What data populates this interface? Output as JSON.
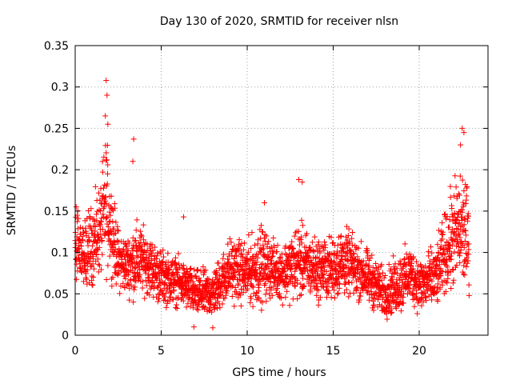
{
  "chart_data": {
    "type": "scatter",
    "title": "Day 130 of 2020, SRMTID for receiver nlsn",
    "xlabel": "GPS time / hours",
    "ylabel": "SRMTID / TECUs",
    "xlim": [
      0,
      24
    ],
    "ylim": [
      0,
      0.35
    ],
    "xticks": [
      "0",
      "5",
      "10",
      "15",
      "20"
    ],
    "xtick_values": [
      0,
      5,
      10,
      15,
      20
    ],
    "yticks": [
      "0",
      "0.05",
      "0.1",
      "0.15",
      "0.2",
      "0.25",
      "0.3",
      "0.35"
    ],
    "ytick_values": [
      0,
      0.05,
      0.1,
      0.15,
      0.2,
      0.25,
      0.3,
      0.35
    ],
    "grid": true,
    "legend": "none",
    "marker": "plus",
    "series": [
      {
        "color": "#ff0000",
        "x_range": [
          0,
          22.9
        ],
        "sample_interval_hours": 0.0083,
        "envelope": {
          "hours": [
            0,
            0.5,
            1,
            1.5,
            1.8,
            2,
            2.5,
            3,
            3.5,
            4,
            5,
            6,
            7,
            8,
            9,
            10,
            10.8,
            11.5,
            12,
            13,
            13.5,
            14,
            15,
            15.5,
            16,
            17,
            18,
            19,
            19.5,
            20,
            21,
            21.5,
            22,
            22.5,
            22.9
          ],
          "center": [
            0.11,
            0.1,
            0.11,
            0.13,
            0.16,
            0.14,
            0.09,
            0.085,
            0.09,
            0.09,
            0.07,
            0.065,
            0.05,
            0.05,
            0.08,
            0.075,
            0.085,
            0.08,
            0.075,
            0.09,
            0.085,
            0.08,
            0.08,
            0.09,
            0.085,
            0.07,
            0.05,
            0.065,
            0.075,
            0.06,
            0.07,
            0.1,
            0.12,
            0.13,
            0.11
          ],
          "spread": [
            0.05,
            0.045,
            0.05,
            0.06,
            0.09,
            0.06,
            0.04,
            0.035,
            0.05,
            0.04,
            0.035,
            0.03,
            0.03,
            0.03,
            0.04,
            0.04,
            0.05,
            0.035,
            0.035,
            0.05,
            0.04,
            0.04,
            0.04,
            0.045,
            0.04,
            0.035,
            0.03,
            0.04,
            0.035,
            0.035,
            0.04,
            0.05,
            0.07,
            0.08,
            0.06
          ]
        },
        "notable_points": [
          {
            "x": 1.8,
            "y": 0.308
          },
          {
            "x": 1.85,
            "y": 0.29
          },
          {
            "x": 1.75,
            "y": 0.265
          },
          {
            "x": 1.9,
            "y": 0.255
          },
          {
            "x": 3.4,
            "y": 0.237
          },
          {
            "x": 3.35,
            "y": 0.21
          },
          {
            "x": 13.0,
            "y": 0.188
          },
          {
            "x": 13.2,
            "y": 0.185
          },
          {
            "x": 11.0,
            "y": 0.16
          },
          {
            "x": 22.5,
            "y": 0.25
          },
          {
            "x": 22.6,
            "y": 0.245
          },
          {
            "x": 22.4,
            "y": 0.23
          },
          {
            "x": 6.3,
            "y": 0.143
          },
          {
            "x": 6.9,
            "y": 0.01
          },
          {
            "x": 8.0,
            "y": 0.009
          }
        ]
      }
    ]
  }
}
